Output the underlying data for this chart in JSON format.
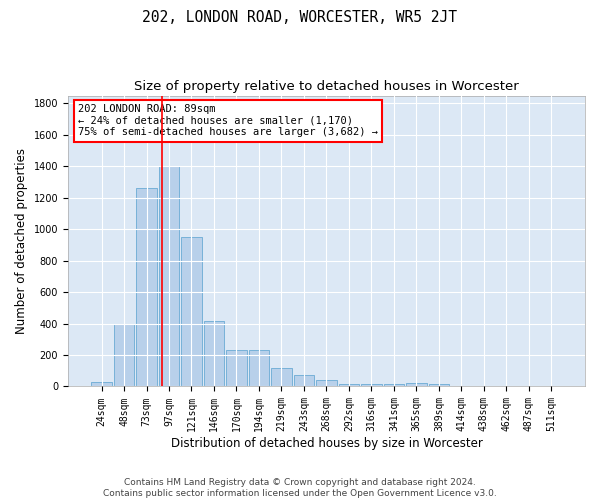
{
  "title": "202, LONDON ROAD, WORCESTER, WR5 2JT",
  "subtitle": "Size of property relative to detached houses in Worcester",
  "xlabel": "Distribution of detached houses by size in Worcester",
  "ylabel": "Number of detached properties",
  "footer_line1": "Contains HM Land Registry data © Crown copyright and database right 2024.",
  "footer_line2": "Contains public sector information licensed under the Open Government Licence v3.0.",
  "annotation_line1": "202 LONDON ROAD: 89sqm",
  "annotation_line2": "← 24% of detached houses are smaller (1,170)",
  "annotation_line3": "75% of semi-detached houses are larger (3,682) →",
  "bar_labels": [
    "24sqm",
    "48sqm",
    "73sqm",
    "97sqm",
    "121sqm",
    "146sqm",
    "170sqm",
    "194sqm",
    "219sqm",
    "243sqm",
    "268sqm",
    "292sqm",
    "316sqm",
    "341sqm",
    "365sqm",
    "389sqm",
    "414sqm",
    "438sqm",
    "462sqm",
    "487sqm",
    "511sqm"
  ],
  "bar_values": [
    30,
    400,
    1265,
    1400,
    950,
    415,
    235,
    235,
    115,
    70,
    38,
    14,
    14,
    14,
    20,
    14,
    0,
    0,
    0,
    0,
    0
  ],
  "bar_color": "#b8d0ea",
  "bar_edge_color": "#6aaad4",
  "vline_color": "red",
  "vline_x": 2.67,
  "ylim": [
    0,
    1850
  ],
  "yticks": [
    0,
    200,
    400,
    600,
    800,
    1000,
    1200,
    1400,
    1600,
    1800
  ],
  "bg_color": "#dce8f5",
  "grid_color": "white",
  "title_fontsize": 10.5,
  "subtitle_fontsize": 9.5,
  "label_fontsize": 8.5,
  "tick_fontsize": 7,
  "footer_fontsize": 6.5,
  "annotation_fontsize": 7.5
}
